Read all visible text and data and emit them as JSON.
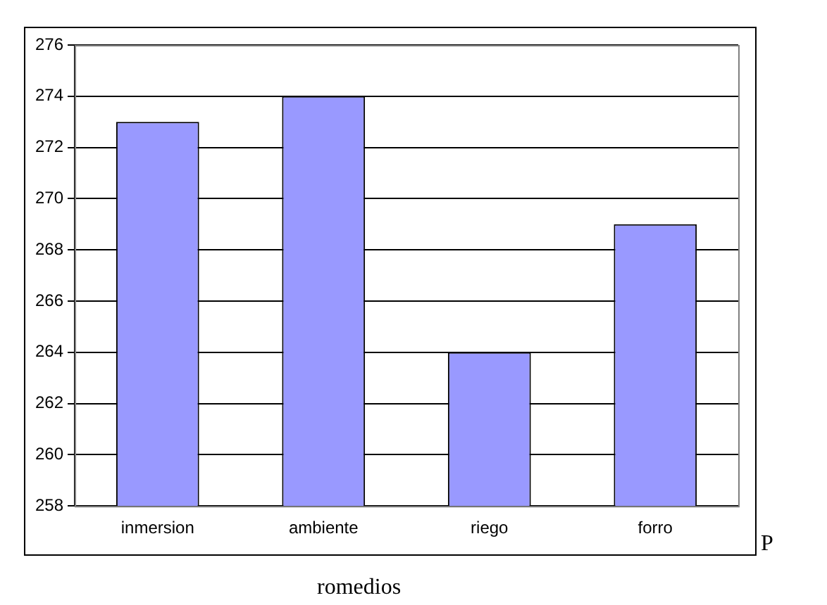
{
  "chart_data": {
    "type": "bar",
    "categories": [
      "inmersion",
      "ambiente",
      "riego",
      "forro"
    ],
    "values": [
      273,
      274,
      264,
      269
    ],
    "color": "#9999ff",
    "ylim": [
      258,
      276
    ],
    "yticks": [
      258,
      260,
      262,
      264,
      266,
      268,
      270,
      272,
      274,
      276
    ],
    "grid": "y",
    "legend": false,
    "annotations": [
      "P",
      "romedios"
    ]
  }
}
